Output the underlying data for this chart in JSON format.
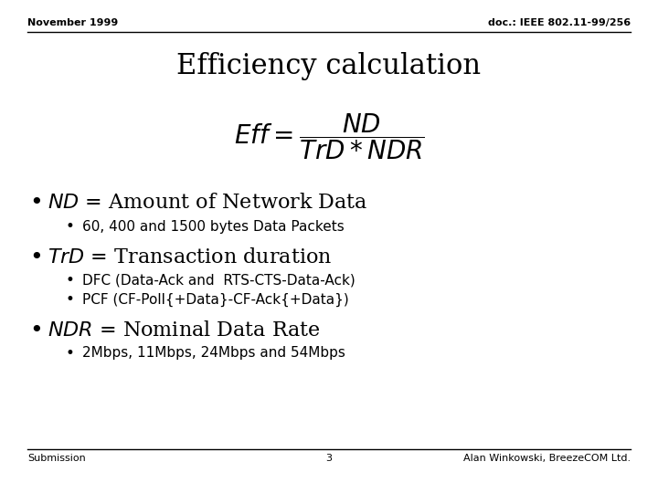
{
  "bg_color": "#ffffff",
  "header_left": "November 1999",
  "header_right": "doc.: IEEE 802.11-99/256",
  "title": "Efficiency calculation",
  "bullet1_italic": "$\\mathit{ND}$",
  "bullet1_text": " = Amount of Network Data",
  "sub1_text": "60, 400 and 1500 bytes Data Packets",
  "bullet2_italic": "$\\mathit{TrD}$",
  "bullet2_text": " = Transaction duration",
  "sub2a_text": "DFC (Data-Ack and  RTS-CTS-Data-Ack)",
  "sub2b_text": "PCF (CF-Poll{+Data}-CF-Ack{+Data})",
  "bullet3_italic": "$\\mathit{NDR}$",
  "bullet3_text": " = Nominal Data Rate",
  "sub3_text": "2Mbps, 11Mbps, 24Mbps and 54Mbps",
  "footer_left": "Submission",
  "footer_center": "3",
  "footer_right": "Alan Winkowski, BreezeCOM Ltd.",
  "text_color": "#000000",
  "header_fontsize": 8,
  "title_fontsize": 22,
  "formula_fontsize": 16,
  "bullet_fontsize": 16,
  "subbullet_fontsize": 11,
  "footer_fontsize": 8
}
